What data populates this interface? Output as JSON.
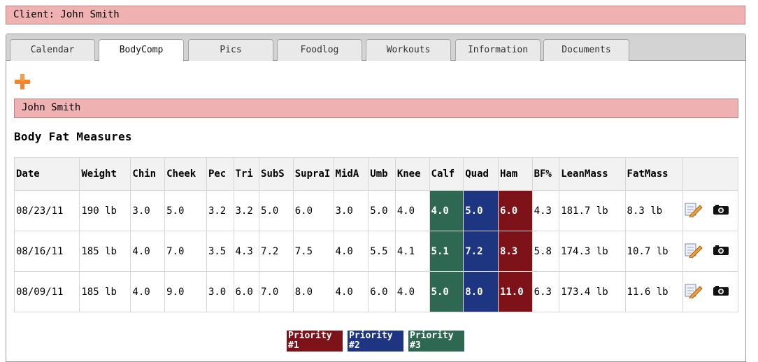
{
  "client_bar": {
    "label": "Client: John Smith"
  },
  "tabs": [
    {
      "label": "Calendar"
    },
    {
      "label": "BodyComp"
    },
    {
      "label": "Pics"
    },
    {
      "label": "Foodlog"
    },
    {
      "label": "Workouts"
    },
    {
      "label": "Information"
    },
    {
      "label": "Documents"
    }
  ],
  "active_tab": "BodyComp",
  "name_bar": {
    "label": "John Smith"
  },
  "section": {
    "title": "Body Fat Measures"
  },
  "table": {
    "headers": [
      "Date",
      "Weight",
      "Chin",
      "Cheek",
      "Pec",
      "Tri",
      "SubS",
      "SupraI",
      "MidA",
      "Umb",
      "Knee",
      "Calf",
      "Quad",
      "Ham",
      "BF%",
      "LeanMass",
      "FatMass"
    ],
    "rows": [
      [
        "08/23/11",
        "190 lb",
        "3.0",
        "5.0",
        "3.2",
        "3.2",
        "5.0",
        "6.0",
        "3.0",
        "5.0",
        "4.0",
        "4.0",
        "5.0",
        "6.0",
        "4.3",
        "181.7 lb",
        "8.3 lb"
      ],
      [
        "08/16/11",
        "185 lb",
        "4.0",
        "7.0",
        "3.5",
        "4.3",
        "7.2",
        "7.5",
        "4.0",
        "5.5",
        "4.1",
        "5.1",
        "7.2",
        "8.3",
        "5.8",
        "174.3 lb",
        "10.7 lb"
      ],
      [
        "08/09/11",
        "185 lb",
        "4.0",
        "9.0",
        "3.0",
        "6.0",
        "7.0",
        "8.0",
        "4.0",
        "6.0",
        "4.0",
        "5.0",
        "8.0",
        "11.0",
        "6.3",
        "173.4 lb",
        "11.6 lb"
      ]
    ],
    "priority_columns": {
      "Ham": 1,
      "Quad": 2,
      "Calf": 3
    }
  },
  "icons": {
    "edit": "edit-icon",
    "photo": "camera-icon",
    "add": "plus-icon"
  },
  "legend": [
    {
      "line1": "Priority",
      "line2": "#1"
    },
    {
      "line1": "Priority",
      "line2": "#2"
    },
    {
      "line1": "Priority",
      "line2": "#3"
    }
  ],
  "colors": {
    "priority_1": "#7e1219",
    "priority_2": "#1e3582",
    "priority_3": "#2f6852",
    "bar_pink": "#efb1b1",
    "add_orange": "#f5852a"
  }
}
